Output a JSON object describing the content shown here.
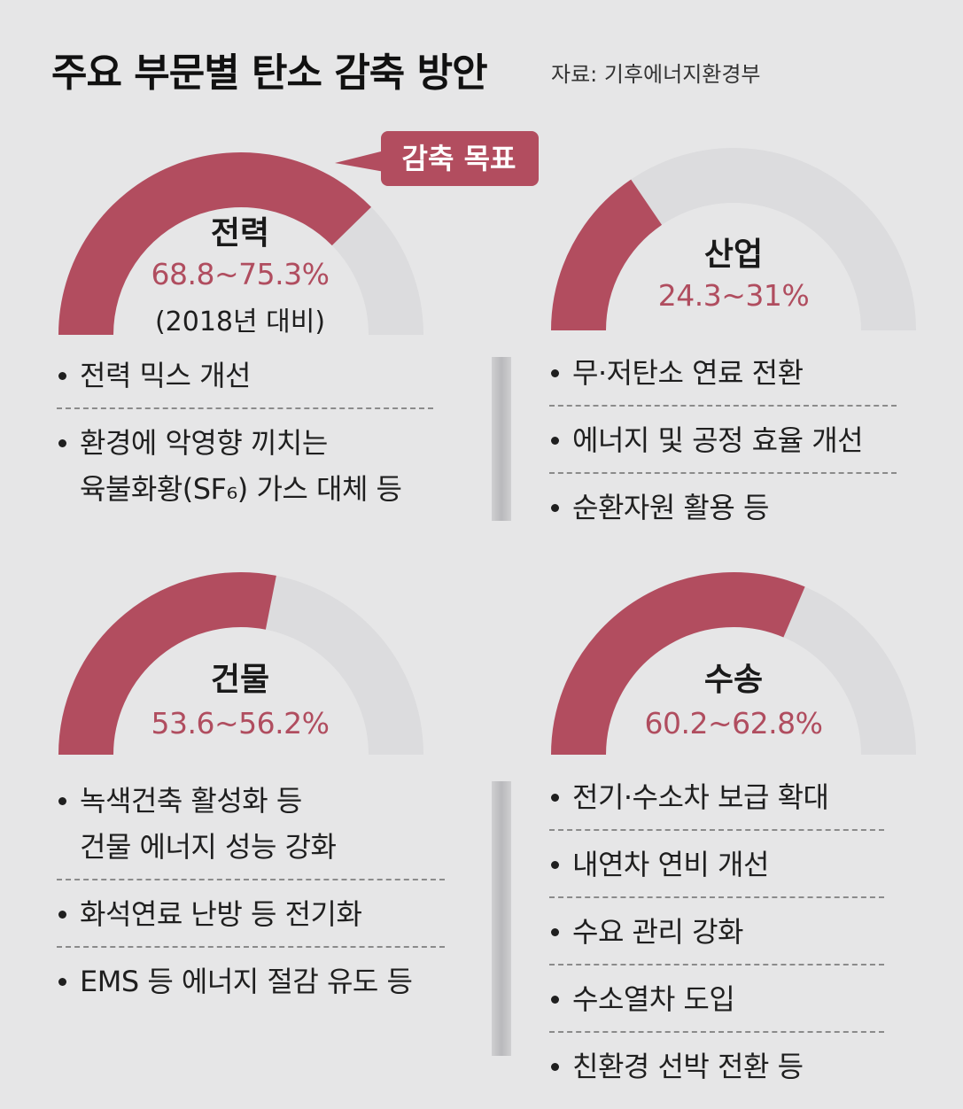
{
  "title": "주요 부문별 탄소 감축 방안",
  "source": "자료: 기후에너지환경부",
  "callout": "감축 목표",
  "colors": {
    "accent": "#b24d5f",
    "track": "#dcdcde",
    "background": "#e6e6e7"
  },
  "chart_data": {
    "type": "gauge",
    "title": "주요 부문별 탄소 감축 방안",
    "unit": "%",
    "scale_max": 100,
    "sectors": [
      {
        "name": "전력",
        "range_label": "68.8~75.3%",
        "min": 68.8,
        "max": 75.3,
        "note": "(2018년 대비)"
      },
      {
        "name": "산업",
        "range_label": "24.3~31%",
        "min": 24.3,
        "max": 31
      },
      {
        "name": "건물",
        "range_label": "53.6~56.2%",
        "min": 53.6,
        "max": 56.2
      },
      {
        "name": "수송",
        "range_label": "60.2~62.8%",
        "min": 60.2,
        "max": 62.8
      }
    ]
  },
  "measures": {
    "power": [
      {
        "lines": [
          "전력 믹스 개선"
        ]
      },
      {
        "lines": [
          "환경에 악영향 끼치는",
          "육불화황(SF₆) 가스 대체 등"
        ]
      }
    ],
    "industry": [
      {
        "lines": [
          "무·저탄소 연료 전환"
        ]
      },
      {
        "lines": [
          "에너지 및 공정 효율 개선"
        ]
      },
      {
        "lines": [
          "순환자원 활용 등"
        ]
      }
    ],
    "building": [
      {
        "lines": [
          "녹색건축 활성화 등",
          "건물 에너지 성능 강화"
        ]
      },
      {
        "lines": [
          "화석연료 난방 등 전기화"
        ]
      },
      {
        "lines": [
          "EMS 등 에너지 절감 유도 등"
        ]
      }
    ],
    "transport": [
      {
        "lines": [
          "전기·수소차 보급 확대"
        ]
      },
      {
        "lines": [
          "내연차 연비 개선"
        ]
      },
      {
        "lines": [
          "수요 관리 강화"
        ]
      },
      {
        "lines": [
          "수소열차 도입"
        ]
      },
      {
        "lines": [
          "친환경 선박 전환 등"
        ]
      }
    ]
  }
}
